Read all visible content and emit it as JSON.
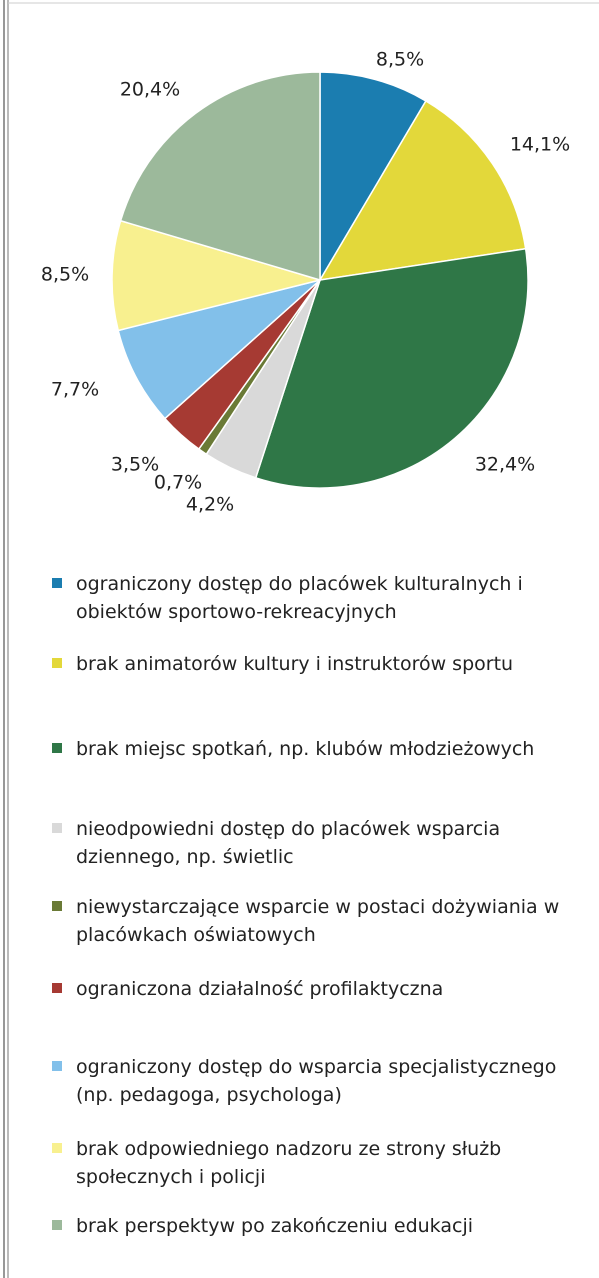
{
  "chart_data": {
    "type": "pie",
    "categories": [
      "ograniczony dostęp do placówek kulturalnych i obiektów sportowo-rekreacyjnych",
      "brak animatorów kultury i instruktorów sportu",
      "brak miejsc spotkań, np. klubów młodzieżowych",
      "nieodpowiedni dostęp do placówek wsparcia dziennego, np. świetlic",
      "niewystarczające wsparcie w postaci dożywiania w placówkach oświatowych",
      "ograniczona działalność profilaktyczna",
      "ograniczony dostęp do wsparcia specjalistycznego (np. pedagoga, psychologa)",
      "brak odpowiedniego nadzoru ze strony służb społecznych i policji",
      "brak perspektyw po zakończeniu edukacji"
    ],
    "values": [
      8.5,
      14.1,
      32.4,
      4.2,
      0.7,
      3.5,
      7.7,
      8.5,
      20.4
    ],
    "value_labels": [
      "8,5%",
      "14,1%",
      "32,4%",
      "4,2%",
      "0,7%",
      "3,5%",
      "7,7%",
      "8,5%",
      "20,4%"
    ],
    "colors": [
      "#1b7db0",
      "#e3d83a",
      "#2f7747",
      "#d9d9d9",
      "#6a7a36",
      "#a63a33",
      "#82c0ea",
      "#f8f08f",
      "#9cb99b"
    ]
  }
}
